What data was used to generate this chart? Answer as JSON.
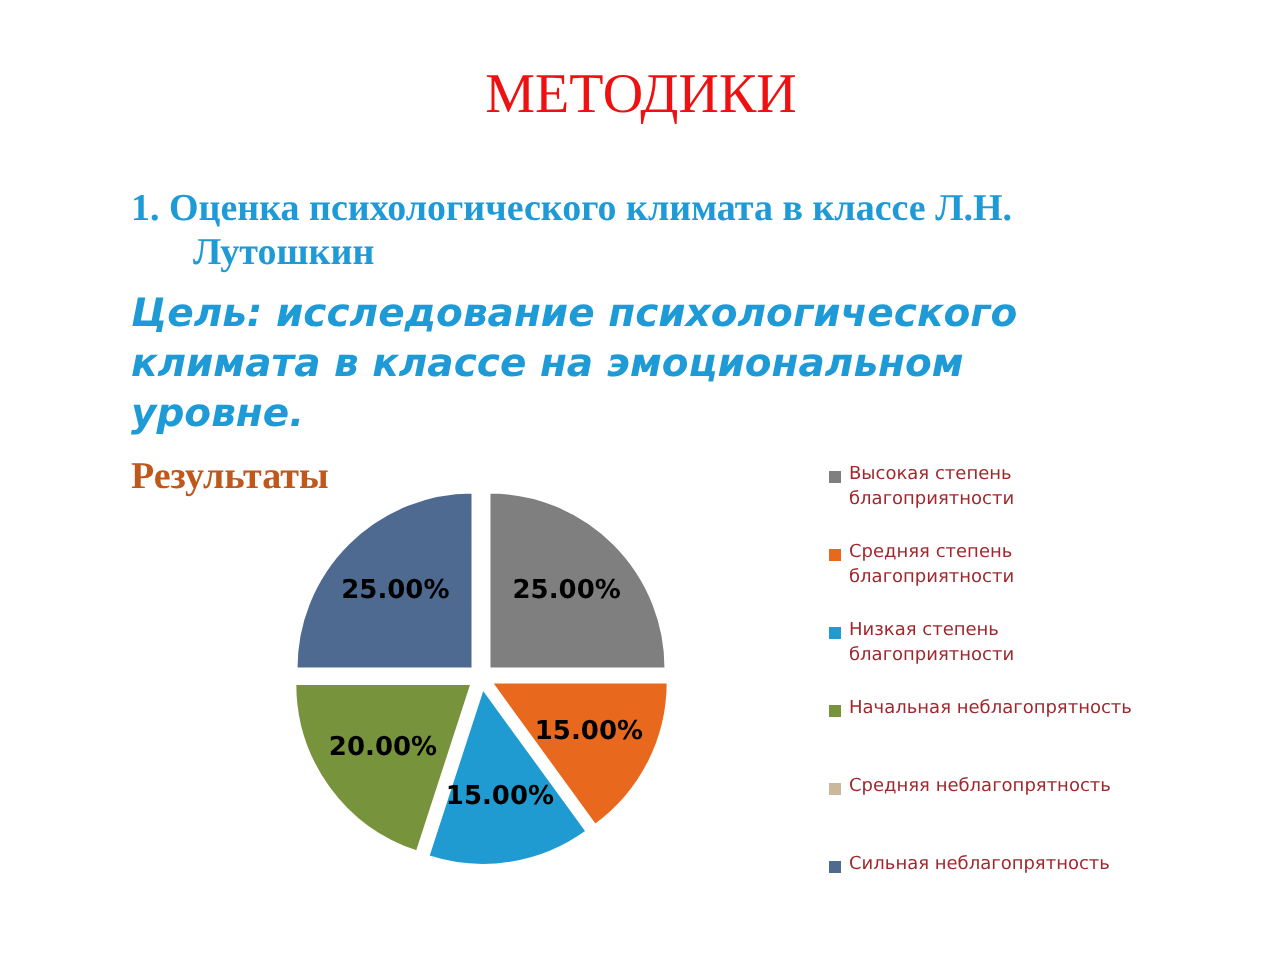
{
  "chart_data": {
    "type": "pie",
    "title": "МЕТОДИКИ",
    "subtitle": "1. Оценка психологического климата в классе Л.Н. Лутошкин",
    "annotations": [
      "Цель: исследование психологического климата в классе на эмоциональном уровне.",
      "Результаты"
    ],
    "categories": [
      "Высокая степень благоприятности",
      "Средняя степень благоприятности",
      "Низкая степень благоприятности",
      "Начальная неблагопрятность",
      "Средняя неблагопрятность",
      "Сильная неблагопрятность"
    ],
    "values": [
      25,
      15,
      15,
      20,
      0,
      25
    ],
    "colors": [
      "#7f7f7f",
      "#e8681e",
      "#1f9bd1",
      "#77933c",
      "#c9b99a",
      "#4f6a91"
    ],
    "value_labels": [
      "25.00%",
      "15.00%",
      "15.00%",
      "20.00%",
      null,
      "25.00%"
    ],
    "legend": "right"
  }
}
